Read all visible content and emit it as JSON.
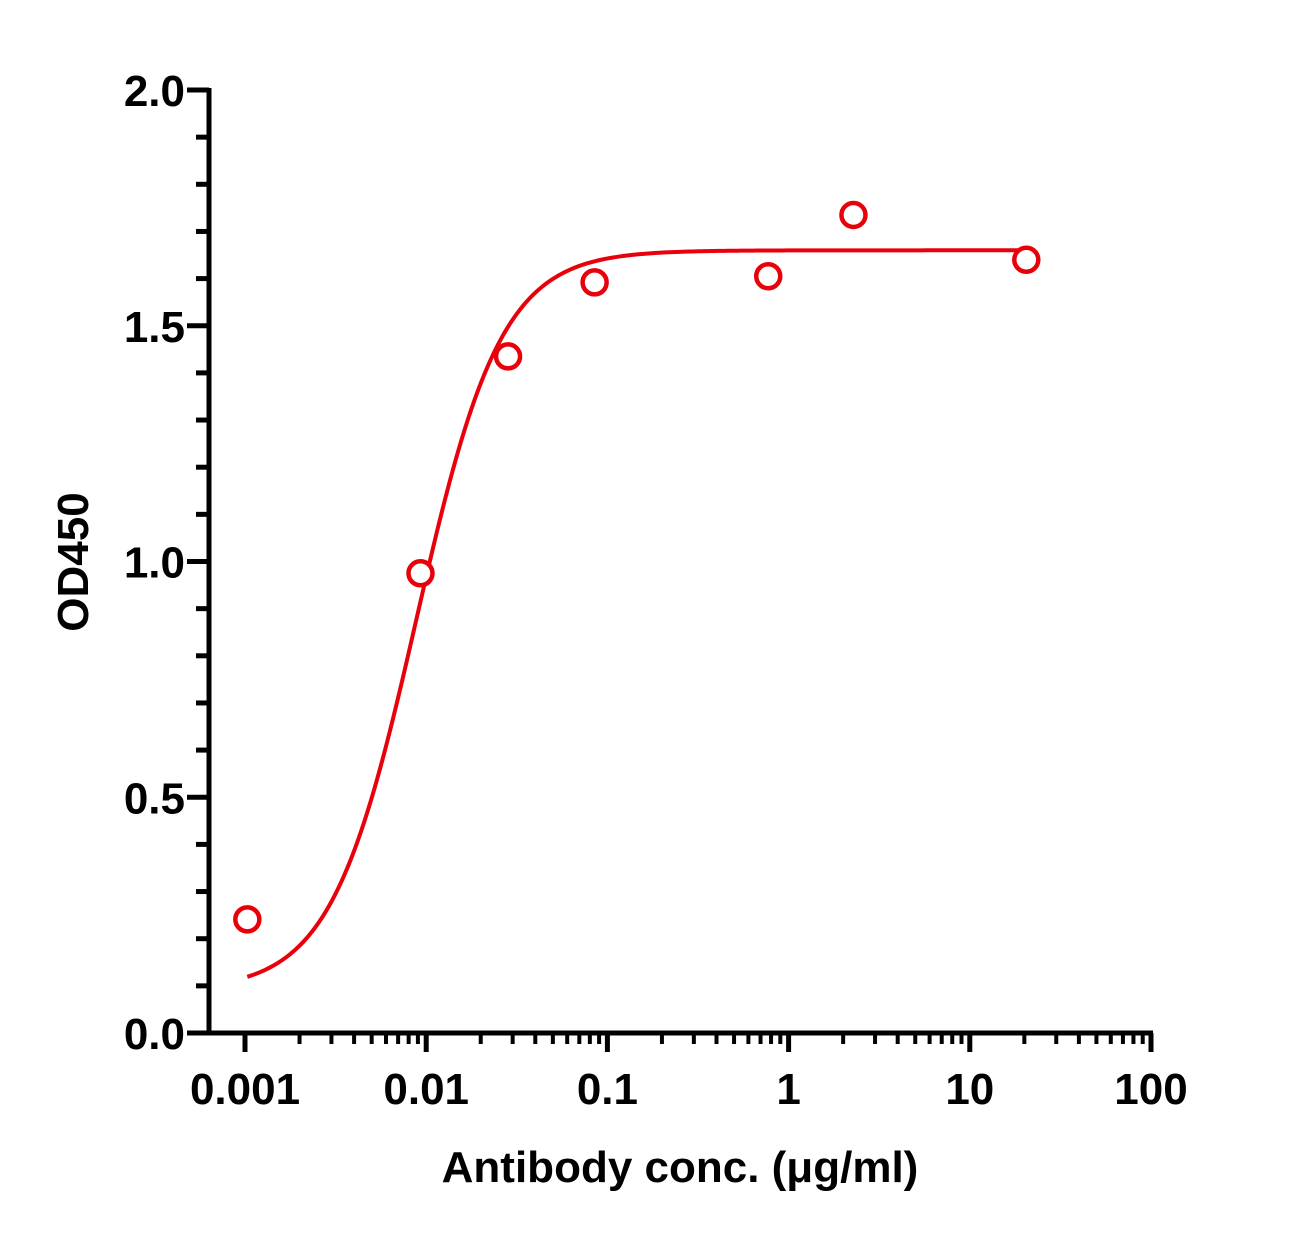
{
  "chart_data": {
    "type": "scatter",
    "title": "",
    "xlabel": "Antibody conc. (μg/ml)",
    "ylabel": "OD450",
    "xscale": "log",
    "xlim": [
      0.001,
      100
    ],
    "ylim": [
      0,
      2
    ],
    "x_ticks": [
      {
        "value": 0.001,
        "label": "0.001"
      },
      {
        "value": 0.01,
        "label": "0.01"
      },
      {
        "value": 0.1,
        "label": "0.1"
      },
      {
        "value": 1,
        "label": "1"
      },
      {
        "value": 10,
        "label": "10"
      },
      {
        "value": 100,
        "label": "100"
      }
    ],
    "y_ticks": [
      {
        "value": 0,
        "label": "0.0"
      },
      {
        "value": 0.5,
        "label": "0.5"
      },
      {
        "value": 1,
        "label": "1.0"
      },
      {
        "value": 1.5,
        "label": "1.5"
      },
      {
        "value": 2,
        "label": "2.0"
      }
    ],
    "grid": false,
    "legend": "none",
    "color": "#e8000b",
    "points": [
      {
        "x": 0.00103,
        "y": 0.241
      },
      {
        "x": 0.0093,
        "y": 0.975
      },
      {
        "x": 0.0283,
        "y": 1.435
      },
      {
        "x": 0.085,
        "y": 1.592
      },
      {
        "x": 0.772,
        "y": 1.605
      },
      {
        "x": 2.28,
        "y": 1.735
      },
      {
        "x": 20.5,
        "y": 1.64
      }
    ],
    "fit_curve": {
      "model": "four-parameter logistic",
      "bottom": 0.09,
      "top": 1.66,
      "ec50": 0.0088,
      "hill": 1.85,
      "x_range": [
        0.00103,
        20.5
      ]
    }
  }
}
